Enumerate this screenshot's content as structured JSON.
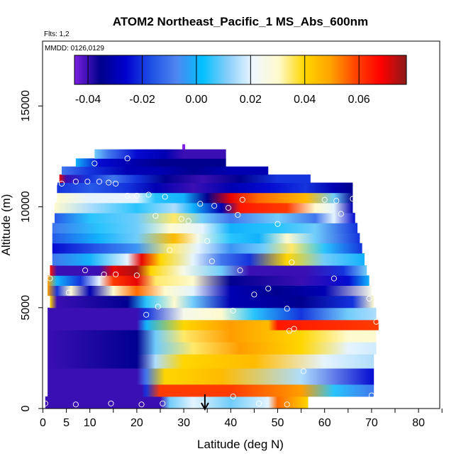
{
  "chart_data": {
    "type": "heatmap",
    "title": "ATOM2 Northeast_Pacific_1 MS_Abs_600nm",
    "flights_label": "Flts: 1,2",
    "dates_label": "MMDD: 0126,0129",
    "xlabel": "Latitude (deg N)",
    "ylabel": "Altitude (m)",
    "xlim": [
      0,
      85
    ],
    "ylim": [
      0,
      18000
    ],
    "x_ticks": [
      0,
      5,
      10,
      20,
      30,
      40,
      50,
      60,
      70,
      80
    ],
    "y_ticks": [
      0,
      5000,
      10000,
      15000
    ],
    "colorbar": {
      "min": -0.045,
      "max": 0.0775,
      "ticks": [
        -0.04,
        -0.02,
        0.0,
        0.02,
        0.04,
        0.06
      ],
      "tick_labels": [
        "-0.04",
        "-0.02",
        "0.00",
        "0.02",
        "0.04",
        "0.06"
      ],
      "colors": [
        "#7b1fe0",
        "#00008b",
        "#0000cd",
        "#1e50e6",
        "#4f86f0",
        "#00bfff",
        "#87cefa",
        "#f0f8ff",
        "#fffacd",
        "#ffd700",
        "#ffa500",
        "#ff4500",
        "#ff0000",
        "#8b1a1a"
      ]
    },
    "altitude_bands": [
      {
        "y0": 0,
        "y1": 600,
        "x0": 0.5,
        "x1": 56.5,
        "stops": [
          [
            0.5,
            -0.04
          ],
          [
            25,
            -0.04
          ],
          [
            27,
            0.01
          ],
          [
            32,
            0.02
          ],
          [
            40,
            0.01
          ],
          [
            48,
            0.02
          ],
          [
            50,
            0.055
          ],
          [
            56.5,
            0.04
          ]
        ]
      },
      {
        "y0": 600,
        "y1": 1200,
        "x0": 1,
        "x1": 70.5,
        "stops": [
          [
            1,
            -0.04
          ],
          [
            21,
            -0.04
          ],
          [
            22,
            -0.02
          ],
          [
            25,
            0.06
          ],
          [
            40,
            0.06
          ],
          [
            55,
            0.05
          ],
          [
            62,
            0.005
          ],
          [
            70.5,
            -0.01
          ]
        ]
      },
      {
        "y0": 1200,
        "y1": 2000,
        "x0": 1,
        "x1": 70.5,
        "stops": [
          [
            1,
            -0.04
          ],
          [
            20,
            -0.04
          ],
          [
            22,
            -0.01
          ],
          [
            26,
            0.04
          ],
          [
            38,
            0.045
          ],
          [
            55,
            0.015
          ],
          [
            70.5,
            -0.025
          ]
        ]
      },
      {
        "y0": 2000,
        "y1": 2700,
        "x0": 1,
        "x1": 70.5,
        "stops": [
          [
            1,
            -0.04
          ],
          [
            20,
            -0.035
          ],
          [
            24,
            0.015
          ],
          [
            30,
            0.04
          ],
          [
            45,
            0.045
          ],
          [
            60,
            0.02
          ],
          [
            70.5,
            0.015
          ]
        ]
      },
      {
        "y0": 2700,
        "y1": 3300,
        "x0": 1,
        "x1": 71,
        "stops": [
          [
            1,
            -0.04
          ],
          [
            20,
            -0.035
          ],
          [
            24,
            0.01
          ],
          [
            32,
            0.035
          ],
          [
            42,
            0.05
          ],
          [
            55,
            0.04
          ],
          [
            65,
            0.02
          ],
          [
            71,
            0.018
          ]
        ]
      },
      {
        "y0": 3300,
        "y1": 3900,
        "x0": 1,
        "x1": 71,
        "stops": [
          [
            1,
            -0.04
          ],
          [
            20,
            -0.035
          ],
          [
            24,
            0.01
          ],
          [
            30,
            0.035
          ],
          [
            40,
            0.05
          ],
          [
            55,
            0.04
          ],
          [
            65,
            0.03
          ],
          [
            71,
            0.03
          ]
        ]
      },
      {
        "y0": 3900,
        "y1": 4400,
        "x0": 1,
        "x1": 71.5,
        "stops": [
          [
            1,
            -0.04
          ],
          [
            20,
            -0.04
          ],
          [
            22,
            0.0
          ],
          [
            30,
            0.04
          ],
          [
            40,
            0.05
          ],
          [
            48,
            0.045
          ],
          [
            50,
            0.065
          ],
          [
            71.5,
            0.06
          ]
        ]
      },
      {
        "y0": 4400,
        "y1": 5000,
        "x0": 1,
        "x1": 71,
        "stops": [
          [
            1,
            -0.04
          ],
          [
            20,
            -0.04
          ],
          [
            22,
            -0.02
          ],
          [
            30,
            0.025
          ],
          [
            38,
            0.03
          ],
          [
            45,
            0.005
          ],
          [
            55,
            -0.02
          ],
          [
            65,
            0.01
          ],
          [
            71,
            0.015
          ]
        ]
      },
      {
        "y0": 5000,
        "y1": 5600,
        "x0": 1.5,
        "x1": 70.5,
        "stops": [
          [
            1.5,
            0.04
          ],
          [
            3,
            -0.04
          ],
          [
            18,
            -0.035
          ],
          [
            22,
            0.005
          ],
          [
            28,
            0.03
          ],
          [
            32,
            0.01
          ],
          [
            40,
            -0.03
          ],
          [
            55,
            -0.035
          ],
          [
            66,
            -0.02
          ],
          [
            70.5,
            0.03
          ]
        ]
      },
      {
        "y0": 5600,
        "y1": 6100,
        "x0": 1,
        "x1": 70,
        "stops": [
          [
            1,
            0.05
          ],
          [
            3,
            -0.02
          ],
          [
            6,
            0.03
          ],
          [
            10,
            -0.03
          ],
          [
            15,
            0.03
          ],
          [
            20,
            0.055
          ],
          [
            26,
            0.03
          ],
          [
            32,
            0.02
          ],
          [
            40,
            -0.03
          ],
          [
            50,
            -0.035
          ],
          [
            60,
            -0.03
          ],
          [
            70,
            0.025
          ]
        ]
      },
      {
        "y0": 6100,
        "y1": 6600,
        "x0": 1,
        "x1": 69.5,
        "stops": [
          [
            1,
            0.05
          ],
          [
            3,
            0.0
          ],
          [
            8,
            -0.02
          ],
          [
            12,
            0.02
          ],
          [
            15,
            0.06
          ],
          [
            20,
            0.07
          ],
          [
            24,
            0.035
          ],
          [
            32,
            0.03
          ],
          [
            40,
            -0.035
          ],
          [
            55,
            -0.04
          ],
          [
            65,
            -0.025
          ],
          [
            69.5,
            0.0
          ]
        ]
      },
      {
        "y0": 6600,
        "y1": 7100,
        "x0": 1.5,
        "x1": 69,
        "stops": [
          [
            1.5,
            0.065
          ],
          [
            3,
            -0.04
          ],
          [
            12,
            -0.04
          ],
          [
            15,
            0.07
          ],
          [
            20,
            0.075
          ],
          [
            23,
            0.04
          ],
          [
            30,
            0.025
          ],
          [
            38,
            0.01
          ],
          [
            44,
            -0.04
          ],
          [
            56,
            -0.04
          ],
          [
            64,
            -0.02
          ],
          [
            69,
            0.01
          ]
        ]
      },
      {
        "y0": 7100,
        "y1": 7700,
        "x0": 2,
        "x1": 68.5,
        "stops": [
          [
            2,
            -0.01
          ],
          [
            10,
            0.0
          ],
          [
            18,
            0.02
          ],
          [
            21,
            0.07
          ],
          [
            25,
            0.04
          ],
          [
            32,
            0.02
          ],
          [
            38,
            -0.01
          ],
          [
            44,
            -0.02
          ],
          [
            52,
            0.04
          ],
          [
            60,
            0.01
          ],
          [
            68.5,
            0.0
          ]
        ]
      },
      {
        "y0": 7700,
        "y1": 8200,
        "x0": 2,
        "x1": 68,
        "stops": [
          [
            2,
            -0.025
          ],
          [
            12,
            -0.015
          ],
          [
            20,
            -0.005
          ],
          [
            27,
            0.035
          ],
          [
            33,
            0.02
          ],
          [
            40,
            -0.005
          ],
          [
            47,
            0.01
          ],
          [
            53,
            0.035
          ],
          [
            60,
            0.005
          ],
          [
            68,
            -0.02
          ]
        ]
      },
      {
        "y0": 8200,
        "y1": 8700,
        "x0": 2,
        "x1": 67.5,
        "stops": [
          [
            2,
            -0.015
          ],
          [
            12,
            0.0
          ],
          [
            20,
            0.01
          ],
          [
            28,
            0.045
          ],
          [
            33,
            0.025
          ],
          [
            40,
            0.005
          ],
          [
            46,
            0.0
          ],
          [
            52,
            0.03
          ],
          [
            58,
            0.01
          ],
          [
            67.5,
            -0.02
          ]
        ]
      },
      {
        "y0": 8700,
        "y1": 9200,
        "x0": 2,
        "x1": 67,
        "stops": [
          [
            2,
            -0.01
          ],
          [
            12,
            0.005
          ],
          [
            20,
            0.01
          ],
          [
            27,
            0.03
          ],
          [
            34,
            0.02
          ],
          [
            40,
            0.0
          ],
          [
            50,
            0.005
          ],
          [
            58,
            0.01
          ],
          [
            67,
            -0.02
          ]
        ]
      },
      {
        "y0": 9200,
        "y1": 9700,
        "x0": 2.5,
        "x1": 66.5,
        "stops": [
          [
            2.5,
            -0.015
          ],
          [
            10,
            0.005
          ],
          [
            20,
            0.01
          ],
          [
            28,
            0.035
          ],
          [
            34,
            0.01
          ],
          [
            40,
            -0.01
          ],
          [
            50,
            0.01
          ],
          [
            58,
            -0.01
          ],
          [
            62,
            0.02
          ],
          [
            66.5,
            -0.025
          ]
        ]
      },
      {
        "y0": 9700,
        "y1": 10200,
        "x0": 2.5,
        "x1": 66,
        "stops": [
          [
            2.5,
            0.03
          ],
          [
            10,
            0.015
          ],
          [
            20,
            0.005
          ],
          [
            28,
            0.015
          ],
          [
            32,
            0.0
          ],
          [
            38,
            -0.03
          ],
          [
            42,
            0.065
          ],
          [
            52,
            0.06
          ],
          [
            58,
            0.03
          ],
          [
            62,
            0.02
          ],
          [
            66,
            -0.03
          ]
        ]
      },
      {
        "y0": 10200,
        "y1": 10700,
        "x0": 3,
        "x1": 66,
        "stops": [
          [
            3,
            0.03
          ],
          [
            10,
            0.02
          ],
          [
            20,
            0.02
          ],
          [
            24,
            0.005
          ],
          [
            30,
            0.0
          ],
          [
            35,
            -0.035
          ],
          [
            40,
            0.07
          ],
          [
            46,
            0.055
          ],
          [
            56,
            0.045
          ],
          [
            62,
            0.01
          ],
          [
            66,
            -0.035
          ]
        ]
      },
      {
        "y0": 10700,
        "y1": 11200,
        "x0": 3,
        "x1": 66,
        "stops": [
          [
            3,
            -0.02
          ],
          [
            10,
            -0.015
          ],
          [
            18,
            -0.02
          ],
          [
            24,
            -0.03
          ],
          [
            32,
            -0.04
          ],
          [
            40,
            -0.03
          ],
          [
            48,
            -0.025
          ],
          [
            56,
            -0.02
          ],
          [
            62,
            -0.03
          ],
          [
            66,
            -0.035
          ]
        ]
      },
      {
        "y0": 11200,
        "y1": 11600,
        "x0": 3.5,
        "x1": 57,
        "stops": [
          [
            3.5,
            0.07
          ],
          [
            5,
            -0.04
          ],
          [
            10,
            -0.02
          ],
          [
            15,
            -0.01
          ],
          [
            20,
            -0.02
          ],
          [
            26,
            -0.035
          ],
          [
            34,
            -0.04
          ],
          [
            42,
            -0.035
          ],
          [
            50,
            -0.02
          ],
          [
            57,
            -0.02
          ]
        ]
      },
      {
        "y0": 11600,
        "y1": 12000,
        "x0": 4,
        "x1": 48,
        "stops": [
          [
            4,
            -0.01
          ],
          [
            10,
            -0.02
          ],
          [
            18,
            -0.03
          ],
          [
            25,
            -0.03
          ],
          [
            32,
            -0.035
          ],
          [
            40,
            -0.03
          ],
          [
            48,
            -0.03
          ]
        ]
      },
      {
        "y0": 12000,
        "y1": 12400,
        "x0": 7,
        "x1": 39,
        "stops": [
          [
            7,
            0.0
          ],
          [
            12,
            -0.025
          ],
          [
            18,
            -0.03
          ],
          [
            25,
            -0.035
          ],
          [
            32,
            -0.035
          ],
          [
            39,
            -0.035
          ]
        ]
      },
      {
        "y0": 12400,
        "y1": 12850,
        "x0": 11,
        "x1": 39,
        "stops": [
          [
            11,
            0.01
          ],
          [
            14,
            -0.01
          ],
          [
            20,
            -0.025
          ],
          [
            26,
            -0.03
          ],
          [
            30,
            -0.04
          ],
          [
            39,
            -0.04
          ]
        ]
      },
      {
        "y0": 12850,
        "y1": 13100,
        "x0": 29.7,
        "x1": 30.3,
        "stops": [
          [
            29.7,
            -0.045
          ],
          [
            30.3,
            -0.045
          ]
        ]
      }
    ],
    "points": [
      [
        0.5,
        250
      ],
      [
        7,
        200
      ],
      [
        14.5,
        250
      ],
      [
        21,
        200
      ],
      [
        25.5,
        250
      ],
      [
        34,
        200
      ],
      [
        46,
        250
      ],
      [
        52,
        200
      ],
      [
        40.5,
        600
      ],
      [
        70,
        650
      ],
      [
        55.5,
        1850
      ],
      [
        52.5,
        3850
      ],
      [
        53.5,
        3950
      ],
      [
        71,
        4300
      ],
      [
        40.5,
        4850
      ],
      [
        22,
        4650
      ],
      [
        24.5,
        5050
      ],
      [
        52,
        4950
      ],
      [
        69.5,
        5450
      ],
      [
        5.5,
        5750
      ],
      [
        45,
        5650
      ],
      [
        48,
        5950
      ],
      [
        1.5,
        6450
      ],
      [
        13,
        6650
      ],
      [
        15.5,
        6650
      ],
      [
        20,
        6600
      ],
      [
        9,
        6850
      ],
      [
        42,
        6850
      ],
      [
        62,
        6450
      ],
      [
        36,
        7300
      ],
      [
        53,
        7250
      ],
      [
        27,
        7850
      ],
      [
        35,
        8300
      ],
      [
        29.5,
        9400
      ],
      [
        31,
        9300
      ],
      [
        41.5,
        9600
      ],
      [
        50,
        9150
      ],
      [
        63.5,
        9650
      ],
      [
        24,
        9550
      ],
      [
        33.5,
        10150
      ],
      [
        36.5,
        10050
      ],
      [
        39.5,
        9950
      ],
      [
        42.5,
        10350
      ],
      [
        60,
        10350
      ],
      [
        62.5,
        10300
      ],
      [
        66,
        10400
      ],
      [
        18,
        10550
      ],
      [
        20,
        10550
      ],
      [
        22.5,
        10600
      ],
      [
        26,
        10500
      ],
      [
        2.5,
        11150
      ],
      [
        4,
        11150
      ],
      [
        7,
        11250
      ],
      [
        9.5,
        11250
      ],
      [
        12,
        11250
      ],
      [
        14,
        11200
      ],
      [
        15.5,
        11150
      ],
      [
        68,
        10800
      ],
      [
        11,
        12150
      ],
      [
        18,
        12400
      ]
    ],
    "arrow_x": 34.5
  }
}
